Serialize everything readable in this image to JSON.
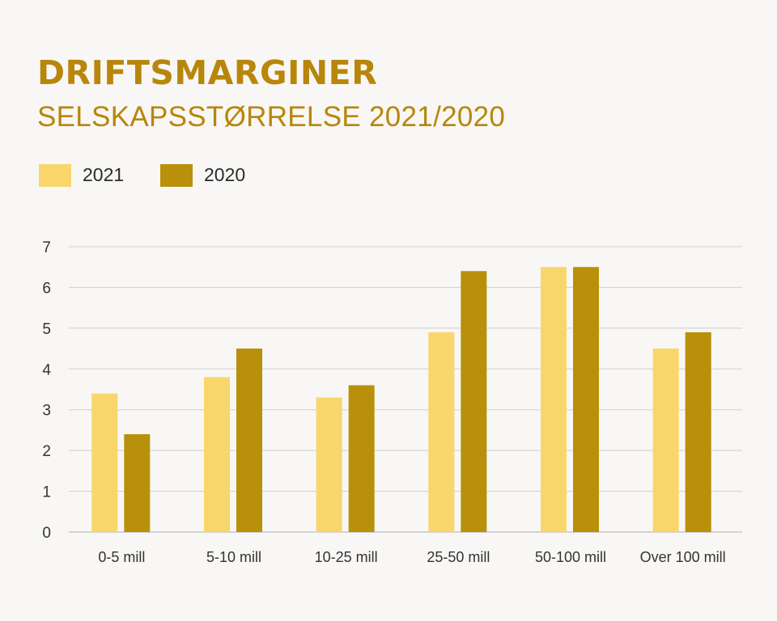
{
  "header": {
    "title": "DRIFTSMARGINER",
    "subtitle": "SELSKAPSSTØRRELSE 2021/2020"
  },
  "colors": {
    "title": "#b8860b",
    "series_2021": "#f8d66b",
    "series_2020": "#b8900a",
    "grid": "#d0d0d0",
    "axis": "#c8c8c8"
  },
  "chart_data": {
    "type": "bar",
    "title": "DRIFTSMARGINER",
    "subtitle": "SELSKAPSSTØRRELSE 2021/2020",
    "categories": [
      "0-5 mill",
      "5-10 mill",
      "10-25 mill",
      "25-50 mill",
      "50-100 mill",
      "Over 100 mill"
    ],
    "series": [
      {
        "name": "2021",
        "values": [
          3.4,
          3.8,
          3.3,
          4.9,
          6.5,
          4.5
        ]
      },
      {
        "name": "2020",
        "values": [
          2.4,
          4.5,
          3.6,
          6.4,
          6.5,
          4.9
        ]
      }
    ],
    "yticks": [
      "0",
      "1",
      "2",
      "3",
      "4",
      "5",
      "6",
      "7"
    ],
    "ylim": [
      0,
      7
    ],
    "xlabel": "",
    "ylabel": "",
    "grid": true,
    "legend": "top-left"
  }
}
